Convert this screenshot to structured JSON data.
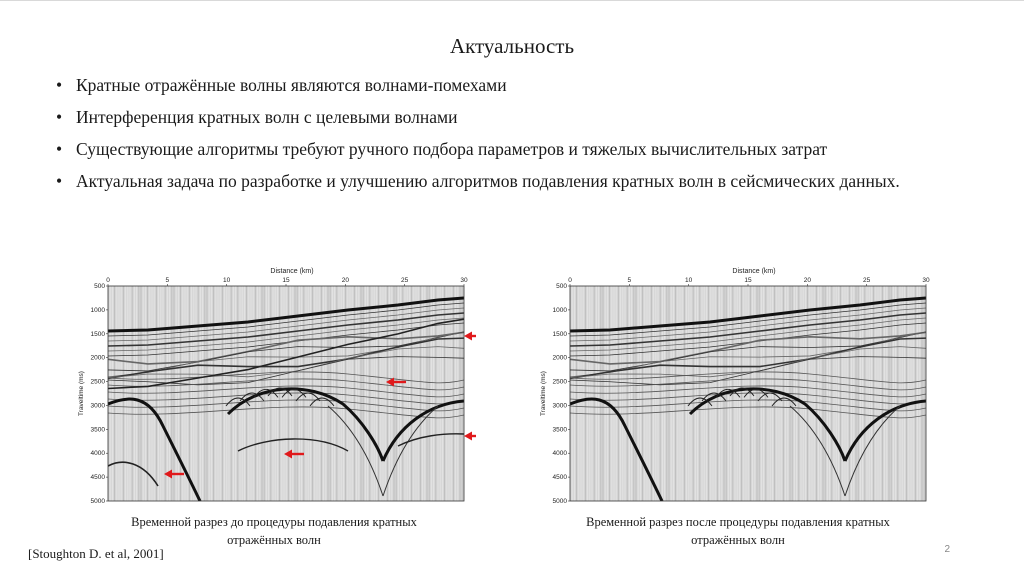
{
  "slide": {
    "title": "Актуальность",
    "bullets": [
      "Кратные отражённые волны являются волнами-помехами",
      "Интерференция кратных волн с целевыми волнами",
      "Существующие алгоритмы требуют ручного подбора параметров и тяжелых вычислительных затрат",
      "Актуальная задача по разработке и улучшению алгоритмов подавления кратных волн в сейсмических данных."
    ],
    "bullet_marker": "•",
    "citation": "[Stoughton D. et al, 2001]",
    "page_number": "2"
  },
  "figures": [
    {
      "caption_line1": "Временной разрез до процедуры подавления кратных",
      "caption_line2": "отражённых волн",
      "x_axis_label": "Distance (km)",
      "y_axis_label": "Traveltime (ms)",
      "x_ticks": [
        "0",
        "5",
        "10",
        "15",
        "20",
        "25",
        "30"
      ],
      "y_ticks": [
        "500",
        "1000",
        "1500",
        "2000",
        "2500",
        "3000",
        "3500",
        "4000",
        "4500",
        "5000"
      ],
      "arrow_color": "#e0191b",
      "arrows": 5
    },
    {
      "caption_line1": "Временной разрез после процедуры подавления кратных",
      "caption_line2": "отражённых волн",
      "x_axis_label": "Distance (km)",
      "y_axis_label": "Traveltime (ms)",
      "x_ticks": [
        "0",
        "5",
        "10",
        "15",
        "20",
        "25",
        "30"
      ],
      "y_ticks": [
        "500",
        "1000",
        "1500",
        "2000",
        "2500",
        "3000",
        "3500",
        "4000",
        "4500",
        "5000"
      ],
      "arrows": 0
    }
  ]
}
